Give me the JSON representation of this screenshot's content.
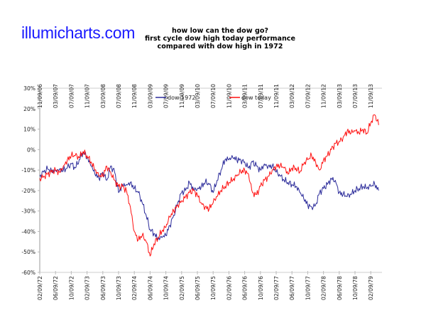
{
  "logo": "illumicharts.com",
  "chart_data": {
    "type": "line",
    "title": [
      "how low can the dow go?",
      "first cycle dow high today performance",
      "compared with dow high in 1972"
    ],
    "x_unit": "months since first tick (monthly samples)",
    "x_start": 0,
    "x_step": 1,
    "x_range": [
      0,
      87
    ],
    "ylim": [
      -60,
      30
    ],
    "y_ticks": [
      "30%",
      "20%",
      "10%",
      "0%",
      "-10%",
      "-20%",
      "-30%",
      "-40%",
      "-50%",
      "-60%"
    ],
    "y_tick_values": [
      30,
      20,
      10,
      0,
      -10,
      -20,
      -30,
      -40,
      -50,
      -60
    ],
    "x_tick_step_months": 4,
    "top_axis_labels": [
      "11/09/06",
      "03/09/07",
      "07/09/07",
      "11/09/07",
      "03/09/08",
      "07/09/08",
      "11/09/08",
      "03/09/09",
      "07/09/09",
      "11/09/09",
      "03/09/10",
      "07/09/10",
      "11/09/10",
      "03/09/11",
      "07/09/11",
      "11/09/11",
      "03/09/12",
      "07/09/12",
      "11/09/12",
      "03/09/13",
      "07/09/13",
      "11/09/13"
    ],
    "bottom_axis_labels": [
      "02/09/72",
      "06/09/72",
      "10/09/72",
      "02/09/73",
      "06/09/73",
      "10/09/73",
      "02/09/74",
      "06/09/74",
      "10/09/74",
      "02/09/75",
      "06/09/75",
      "10/09/75",
      "02/09/76",
      "06/09/76",
      "10/09/76",
      "02/09/77",
      "06/09/77",
      "10/09/77",
      "02/09/78",
      "06/09/78",
      "10/09/78",
      "02/09/79"
    ],
    "legend_position": "top-center",
    "grid": false,
    "series": [
      {
        "name": "dow 1972",
        "color": "#2b2b9a",
        "axis": "bottom",
        "values": [
          -13,
          -11,
          -9.5,
          -10.5,
          -10,
          -9.5,
          -10,
          -9,
          -7,
          -9,
          -5,
          -1,
          -4,
          -8,
          -12,
          -14,
          -11,
          -15,
          -8,
          -11,
          -21,
          -17,
          -17,
          -16,
          -19,
          -21,
          -26,
          -32,
          -39,
          -41,
          -44,
          -43,
          -42,
          -37,
          -32,
          -26,
          -21,
          -20,
          -16,
          -19,
          -19,
          -18,
          -16,
          -17,
          -21,
          -15,
          -10,
          -5,
          -5,
          -4,
          -5,
          -5,
          -6,
          -9,
          -6,
          -8,
          -10,
          -7,
          -8,
          -8,
          -11,
          -13,
          -15,
          -16,
          -17,
          -18,
          -21,
          -24,
          -27,
          -28,
          -27,
          -21,
          -19,
          -17,
          -14,
          -15,
          -21,
          -22,
          -23,
          -22,
          -20,
          -19,
          -18,
          -19,
          -18,
          -17,
          -20
        ]
      },
      {
        "name": "dow today",
        "color": "#ff1010",
        "axis": "top",
        "values": [
          -14,
          -13,
          -12,
          -11,
          -10,
          -11,
          -8,
          -5,
          -3,
          -3,
          -4,
          -1,
          -3,
          -6,
          -10,
          -13,
          -13,
          -8,
          -11,
          -15,
          -18,
          -18,
          -20,
          -28,
          -40,
          -44,
          -42,
          -45,
          -52,
          -46,
          -43,
          -40,
          -38,
          -33,
          -30,
          -27,
          -25,
          -23,
          -21,
          -20,
          -22,
          -26,
          -28,
          -29,
          -26,
          -23,
          -20,
          -18,
          -16,
          -15,
          -13,
          -11,
          -10,
          -12,
          -21,
          -22,
          -18,
          -15,
          -13,
          -10,
          -8,
          -8,
          -9,
          -12,
          -9,
          -9,
          -11,
          -7,
          -5,
          -3,
          -6,
          -10,
          -5,
          -3,
          0,
          3,
          4,
          6,
          9,
          8,
          9,
          8,
          10,
          8,
          13,
          17,
          12
        ]
      }
    ]
  }
}
